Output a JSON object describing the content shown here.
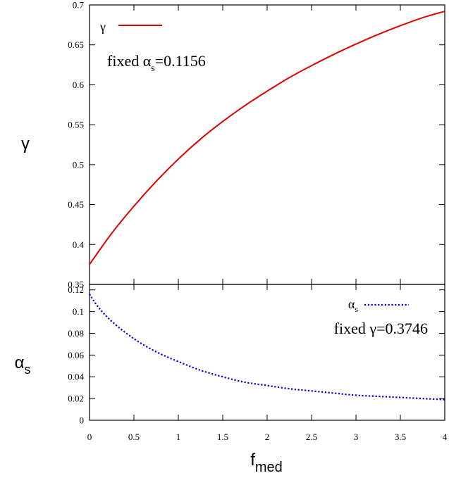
{
  "chart_data": [
    {
      "type": "line",
      "panel": "top",
      "ylabel": "γ",
      "xlim": [
        0,
        4
      ],
      "ylim": [
        0.35,
        0.7
      ],
      "xticks": [
        0,
        0.5,
        1,
        1.5,
        2,
        2.5,
        3,
        3.5,
        4
      ],
      "yticks": [
        0.35,
        0.4,
        0.45,
        0.5,
        0.55,
        0.6,
        0.65,
        0.7
      ],
      "ytick_labels": [
        "0.35",
        "0.4",
        "0.45",
        "0.5",
        "0.55",
        "0.6",
        "0.65",
        "0.7"
      ],
      "grid": false,
      "legend_position": "top-left",
      "annotation": {
        "prefix": "fixed ",
        "symbol": "α",
        "subscript": "s",
        "suffix": "=0.1156"
      },
      "series": [
        {
          "name": "γ",
          "color": "#e00000",
          "style": "solid",
          "x": [
            0,
            0.25,
            0.5,
            0.75,
            1,
            1.25,
            1.5,
            1.75,
            2,
            2.25,
            2.5,
            2.75,
            3,
            3.25,
            3.5,
            3.75,
            4
          ],
          "y": [
            0.375,
            0.414,
            0.448,
            0.479,
            0.507,
            0.532,
            0.554,
            0.574,
            0.592,
            0.609,
            0.624,
            0.638,
            0.651,
            0.663,
            0.674,
            0.684,
            0.692
          ]
        }
      ]
    },
    {
      "type": "line",
      "panel": "bottom",
      "xlabel": "f",
      "xlabel_sub": "med",
      "ylabel": "α",
      "ylabel_sub": "s",
      "xlim": [
        0,
        4
      ],
      "ylim": [
        0,
        0.125
      ],
      "xticks": [
        0,
        0.5,
        1,
        1.5,
        2,
        2.5,
        3,
        3.5,
        4
      ],
      "xtick_labels": [
        "0",
        "0.5",
        "1",
        "1.5",
        "2",
        "2.5",
        "3",
        "3.5",
        "4"
      ],
      "yticks": [
        0,
        0.02,
        0.04,
        0.06,
        0.08,
        0.1,
        0.12
      ],
      "ytick_labels": [
        "0",
        "0.02",
        "0.04",
        "0.06",
        "0.08",
        "0.1",
        "0.12"
      ],
      "grid": false,
      "legend_position": "top-right",
      "annotation": {
        "prefix": "fixed ",
        "symbol": "γ",
        "suffix": "=0.3746"
      },
      "series": [
        {
          "name": "α",
          "name_sub": "s",
          "color": "#0000e0",
          "style": "dotted",
          "x": [
            0,
            0.1,
            0.25,
            0.5,
            0.75,
            1,
            1.25,
            1.5,
            1.75,
            2,
            2.25,
            2.5,
            2.75,
            3,
            3.25,
            3.5,
            3.75,
            4
          ],
          "y": [
            0.116,
            0.104,
            0.091,
            0.075,
            0.063,
            0.054,
            0.046,
            0.04,
            0.035,
            0.032,
            0.029,
            0.027,
            0.025,
            0.023,
            0.022,
            0.021,
            0.02,
            0.019
          ]
        }
      ]
    }
  ]
}
